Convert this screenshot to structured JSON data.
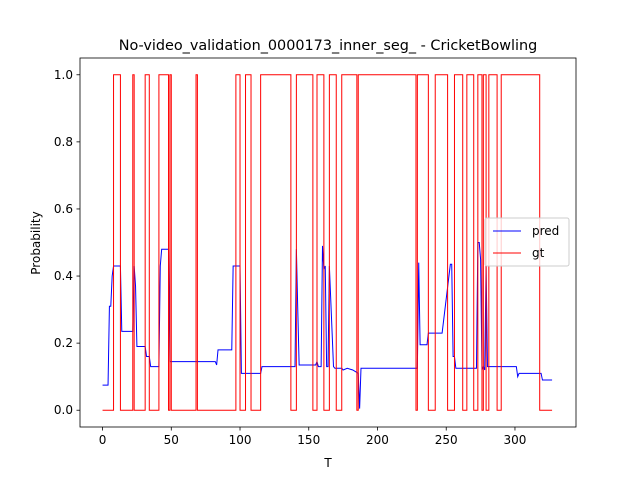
{
  "chart_data": {
    "type": "line",
    "title": "No-video_validation_0000173_inner_seg_ - CricketBowling",
    "xlabel": "T",
    "ylabel": "Probability",
    "xlim": [
      -16.4,
      344.4
    ],
    "ylim": [
      -0.05,
      1.05
    ],
    "xticks": [
      0,
      50,
      100,
      150,
      200,
      250,
      300
    ],
    "yticks": [
      0.0,
      0.2,
      0.4,
      0.6,
      0.8,
      1.0
    ],
    "xtick_labels": [
      "0",
      "50",
      "100",
      "150",
      "200",
      "250",
      "300"
    ],
    "ytick_labels": [
      "0.0",
      "0.2",
      "0.4",
      "0.6",
      "0.8",
      "1.0"
    ],
    "grid": false,
    "legend": {
      "placement": "center-right",
      "entries": [
        "pred",
        "gt"
      ]
    },
    "colors": {
      "pred": "#0000ff",
      "gt": "#ff0000"
    },
    "series": [
      {
        "name": "pred",
        "color": "#0000ff",
        "step": false,
        "x": [
          0,
          4,
          5,
          6,
          7,
          8,
          13,
          14,
          22,
          23,
          24,
          25,
          31,
          32,
          34,
          35,
          41,
          42,
          43,
          48,
          49,
          82,
          83,
          84,
          94,
          95,
          100,
          101,
          115,
          116,
          140,
          141,
          142,
          143,
          155,
          156,
          157,
          159,
          160,
          161,
          162,
          163,
          164,
          165,
          168,
          169,
          170,
          174,
          175,
          178,
          182,
          186,
          187,
          188,
          229,
          230,
          231,
          232,
          236,
          237,
          247,
          253,
          254,
          255,
          256,
          257,
          258,
          263,
          272,
          273,
          274,
          275,
          276,
          277,
          278,
          279,
          280,
          281,
          301,
          302,
          303,
          319,
          320,
          327
        ],
        "y": [
          0.075,
          0.075,
          0.31,
          0.31,
          0.4,
          0.43,
          0.43,
          0.235,
          0.235,
          0.43,
          0.37,
          0.19,
          0.19,
          0.16,
          0.16,
          0.13,
          0.13,
          0.43,
          0.48,
          0.48,
          0.145,
          0.145,
          0.135,
          0.18,
          0.18,
          0.43,
          0.43,
          0.11,
          0.11,
          0.13,
          0.13,
          0.48,
          0.3,
          0.135,
          0.135,
          0.145,
          0.13,
          0.13,
          0.49,
          0.42,
          0.43,
          0.13,
          0.13,
          0.43,
          0.13,
          0.125,
          0.125,
          0.125,
          0.12,
          0.125,
          0.12,
          0.11,
          0.005,
          0.125,
          0.125,
          0.44,
          0.195,
          0.195,
          0.195,
          0.23,
          0.23,
          0.435,
          0.435,
          0.16,
          0.16,
          0.125,
          0.125,
          0.125,
          0.125,
          0.5,
          0.5,
          0.45,
          0.12,
          0.13,
          0.12,
          0.43,
          0.13,
          0.13,
          0.13,
          0.1,
          0.11,
          0.11,
          0.09,
          0.09
        ]
      },
      {
        "name": "gt",
        "color": "#ff0000",
        "step": true,
        "x": [
          0,
          8,
          13,
          22,
          23,
          31,
          34,
          41,
          48,
          49,
          50,
          68,
          69,
          97,
          100,
          104,
          108,
          115,
          127,
          137,
          141,
          153,
          156,
          161,
          165,
          170,
          174,
          185,
          186,
          228,
          229,
          237,
          242,
          251,
          256,
          262,
          265,
          270,
          273,
          276,
          277,
          279,
          281,
          287,
          290,
          318,
          327
        ],
        "y": [
          0,
          1,
          0,
          1,
          0,
          1,
          0,
          1,
          0,
          1,
          0,
          1,
          0,
          1,
          0,
          1,
          0,
          1,
          1,
          0,
          1,
          0,
          1,
          0,
          1,
          0,
          1,
          0,
          1,
          0,
          1,
          0,
          1,
          0,
          1,
          0,
          1,
          0,
          1,
          0,
          1,
          0,
          1,
          0,
          1,
          0,
          0
        ]
      }
    ]
  }
}
